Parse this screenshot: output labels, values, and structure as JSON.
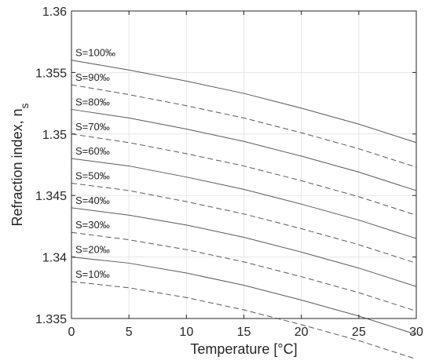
{
  "chart_data": {
    "type": "line",
    "title": "",
    "xlabel": "Temperature [°C]",
    "ylabel": "Refraction index, n",
    "ylabel_subscript": "s",
    "xlim": [
      0,
      30
    ],
    "ylim": [
      1.335,
      1.36
    ],
    "xticks": [
      "0",
      "5",
      "10",
      "15",
      "20",
      "25",
      "30"
    ],
    "yticks": [
      "1.335",
      "1.34",
      "1.345",
      "1.35",
      "1.355",
      "1.36"
    ],
    "grid": true,
    "legend": "none",
    "x": [
      0,
      5,
      10,
      15,
      20,
      25,
      30
    ],
    "series": [
      {
        "name": "S=100‰",
        "style": "solid",
        "values": [
          1.356,
          1.3552,
          1.3543,
          1.3533,
          1.3521,
          1.3508,
          1.3493
        ]
      },
      {
        "name": "S=90‰",
        "style": "dashed",
        "values": [
          1.354,
          1.3532,
          1.3523,
          1.3513,
          1.3501,
          1.3488,
          1.3473
        ]
      },
      {
        "name": "S=80‰",
        "style": "solid",
        "values": [
          1.352,
          1.3513,
          1.3504,
          1.3494,
          1.3482,
          1.3469,
          1.3454
        ]
      },
      {
        "name": "S=70‰",
        "style": "dashed",
        "values": [
          1.35,
          1.3493,
          1.3484,
          1.3474,
          1.3462,
          1.3449,
          1.3434
        ]
      },
      {
        "name": "S=60‰",
        "style": "solid",
        "values": [
          1.348,
          1.3474,
          1.3465,
          1.3455,
          1.3443,
          1.343,
          1.3415
        ]
      },
      {
        "name": "S=50‰",
        "style": "dashed",
        "values": [
          1.346,
          1.3454,
          1.3445,
          1.3435,
          1.3423,
          1.341,
          1.3395
        ]
      },
      {
        "name": "S=40‰",
        "style": "solid",
        "values": [
          1.344,
          1.3434,
          1.3426,
          1.3416,
          1.3404,
          1.3391,
          1.3376
        ]
      },
      {
        "name": "S=30‰",
        "style": "dashed",
        "values": [
          1.342,
          1.3414,
          1.3406,
          1.3396,
          1.3384,
          1.3371,
          1.3356
        ]
      },
      {
        "name": "S=20‰",
        "style": "solid",
        "values": [
          1.34,
          1.3395,
          1.3387,
          1.3377,
          1.3365,
          1.3352,
          1.3337
        ]
      },
      {
        "name": "S=10‰",
        "style": "dashed",
        "values": [
          1.338,
          1.3375,
          1.3367,
          1.3357,
          1.3345,
          1.3332,
          1.3317
        ]
      }
    ],
    "colors": {
      "line": "#5a5a5a",
      "grid": "#e6e6e6",
      "axis": "#262626",
      "text": "#262626"
    }
  }
}
